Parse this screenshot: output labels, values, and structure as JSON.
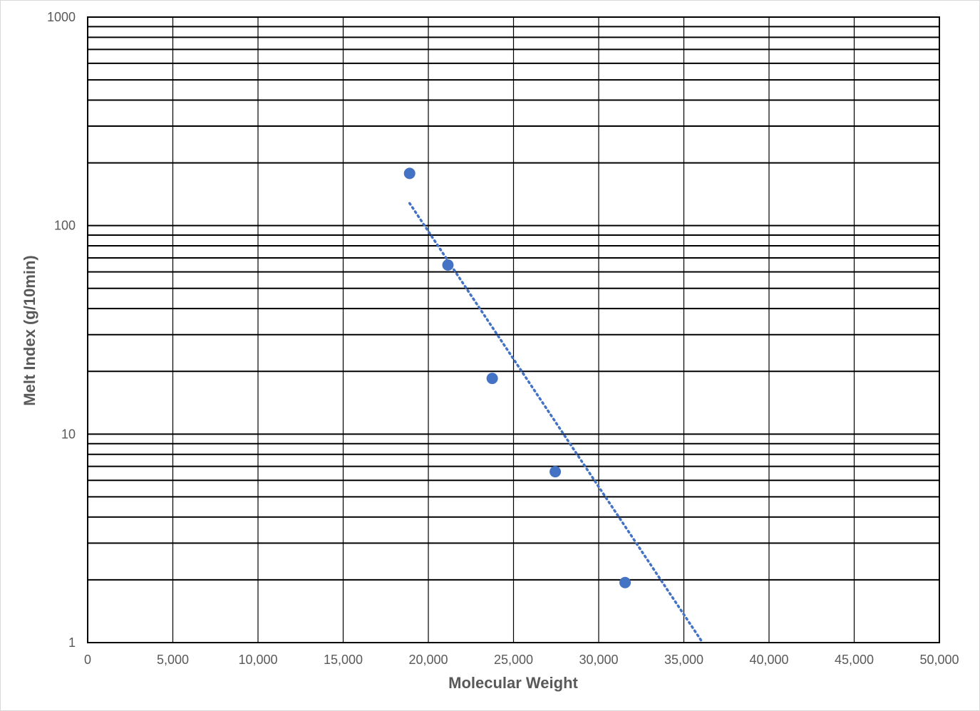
{
  "chart_data": {
    "type": "scatter",
    "xlabel": "Molecular Weight",
    "ylabel": "Melt Index (g/10min)",
    "xlim": [
      0,
      50000
    ],
    "ylim": [
      1,
      1000
    ],
    "y_scale": "log",
    "grid": true,
    "x_ticks": [
      "0",
      "5,000",
      "10,000",
      "15,000",
      "20,000",
      "25,000",
      "30,000",
      "35,000",
      "40,000",
      "45,000",
      "50,000"
    ],
    "y_ticks": [
      "1",
      "10",
      "100",
      "1000"
    ],
    "series": [
      {
        "x": [
          18900,
          21150,
          23750,
          27450,
          31550
        ],
        "y": [
          178,
          64.7,
          18.5,
          6.6,
          1.94
        ],
        "color": "#4472c4",
        "marker": "circle"
      }
    ],
    "trendline": {
      "type": "exponential",
      "style": "dotted",
      "color": "#4472c4",
      "x_range": [
        18900,
        36100
      ],
      "y_range": [
        128,
        1
      ]
    }
  }
}
